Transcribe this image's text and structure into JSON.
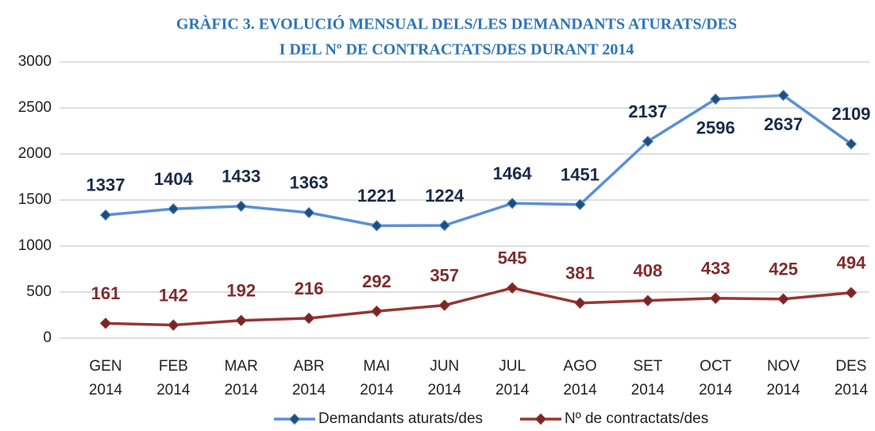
{
  "chart_data": {
    "type": "line",
    "title": [
      "GRÀFIC  3. EVOLUCIÓ MENSUAL DELS/LES DEMANDANTS ATURATS/DES",
      "I DEL Nº DE CONTRACTATS/DES DURANT 2014"
    ],
    "categories": [
      "GEN 2014",
      "FEB 2014",
      "MAR 2014",
      "ABR 2014",
      "MAI 2014",
      "JUN 2014",
      "JUL 2014",
      "AGO 2014",
      "SET 2014",
      "OCT 2014",
      "NOV 2014",
      "DES 2014"
    ],
    "series": [
      {
        "name": "Demandants aturats/des",
        "color": "#5b8fd6",
        "marker_color": "#1f4e79",
        "label_color": "#1b2a4a",
        "values": [
          1337,
          1404,
          1433,
          1363,
          1221,
          1224,
          1464,
          1451,
          2137,
          2596,
          2637,
          2109
        ]
      },
      {
        "name": "Nº de contractats/des",
        "color": "#953735",
        "marker_color": "#7a2626",
        "label_color": "#7f2d2d",
        "values": [
          161,
          142,
          192,
          216,
          292,
          357,
          545,
          381,
          408,
          433,
          425,
          494
        ]
      }
    ],
    "ylim": [
      0,
      3000
    ],
    "yticks": [
      0,
      500,
      1000,
      1500,
      2000,
      2500,
      3000
    ],
    "grid": true,
    "legend": "bottom"
  }
}
